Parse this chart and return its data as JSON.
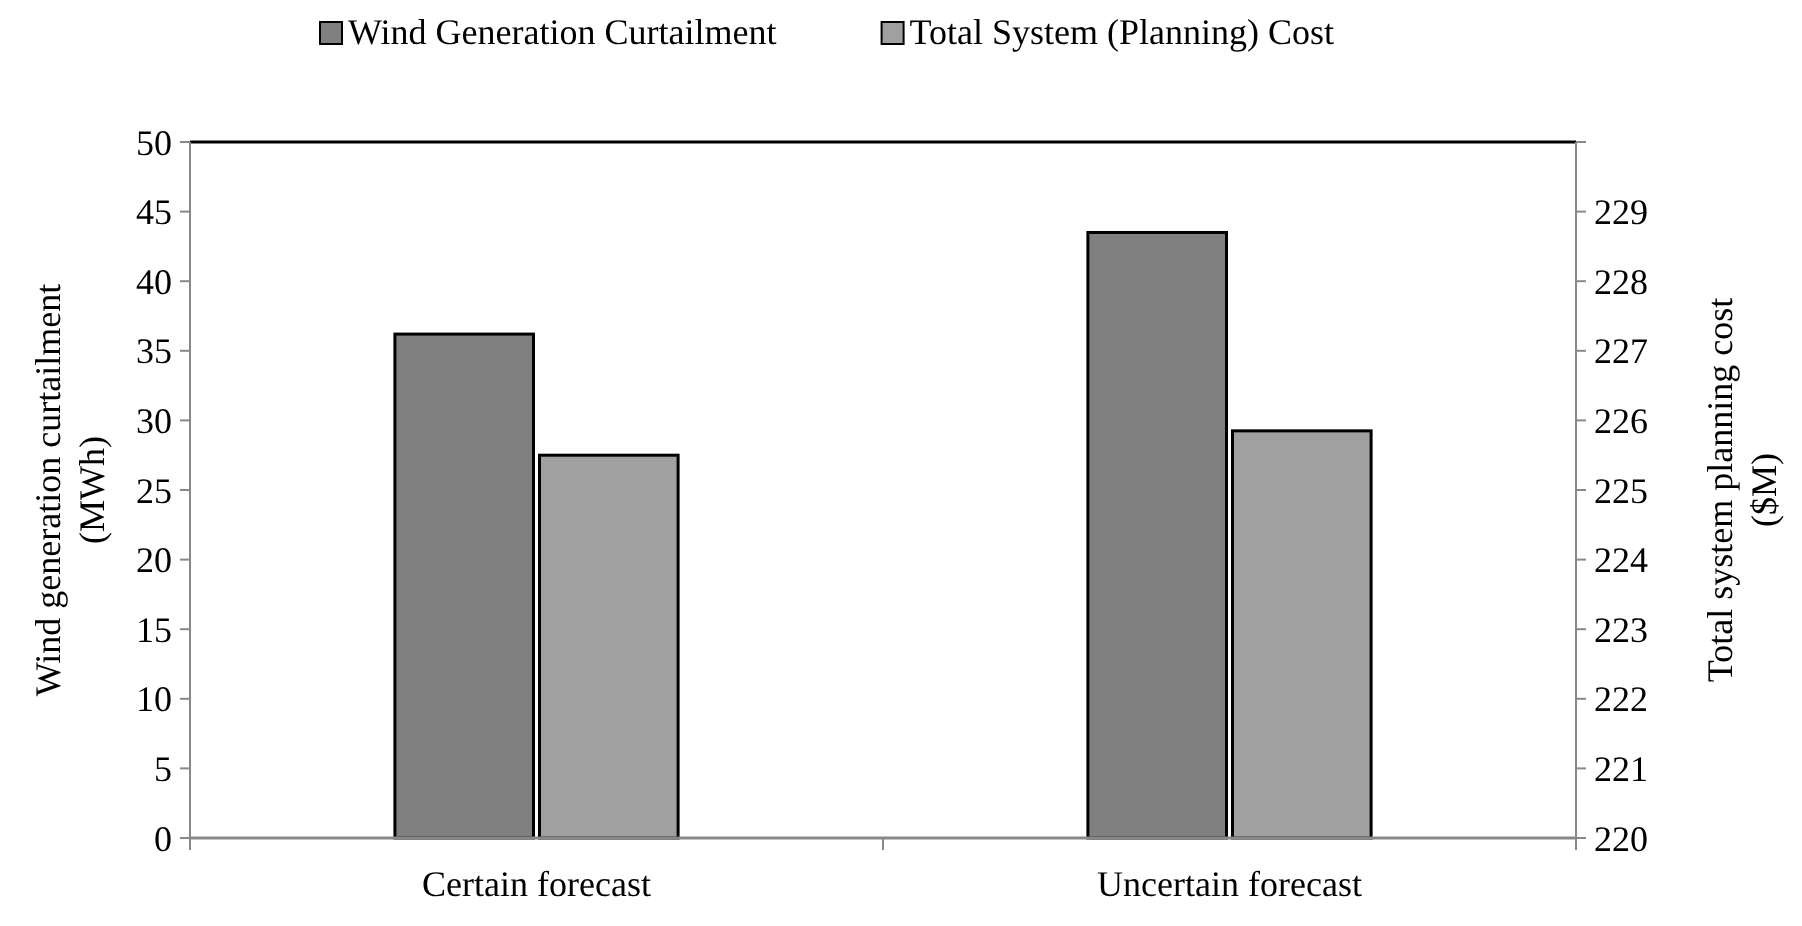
{
  "chart_data": {
    "type": "bar",
    "categories": [
      "Certain forecast",
      "Uncertain forecast"
    ],
    "series": [
      {
        "name": "Wind Generation Curtailment",
        "color": "#808080",
        "values": [
          36.2,
          43.5
        ]
      },
      {
        "name": "Total System (Planning) Cost",
        "color": "#a0a0a0",
        "values": [
          225.5,
          225.85
        ],
        "axis": "y2"
      }
    ],
    "ylabel": "Wind generation curtailment (MWh)",
    "y2label": "Total system planning cost ($M)",
    "ylim": [
      0,
      50
    ],
    "yticks": [
      0,
      5,
      10,
      15,
      20,
      25,
      30,
      35,
      40,
      45,
      50
    ],
    "y2lim": [
      220,
      230
    ],
    "y2ticks": [
      220,
      221,
      222,
      223,
      224,
      225,
      226,
      227,
      228,
      229,
      {
        "value": 230,
        "label": null
      }
    ],
    "grid": false,
    "legend": "top"
  }
}
